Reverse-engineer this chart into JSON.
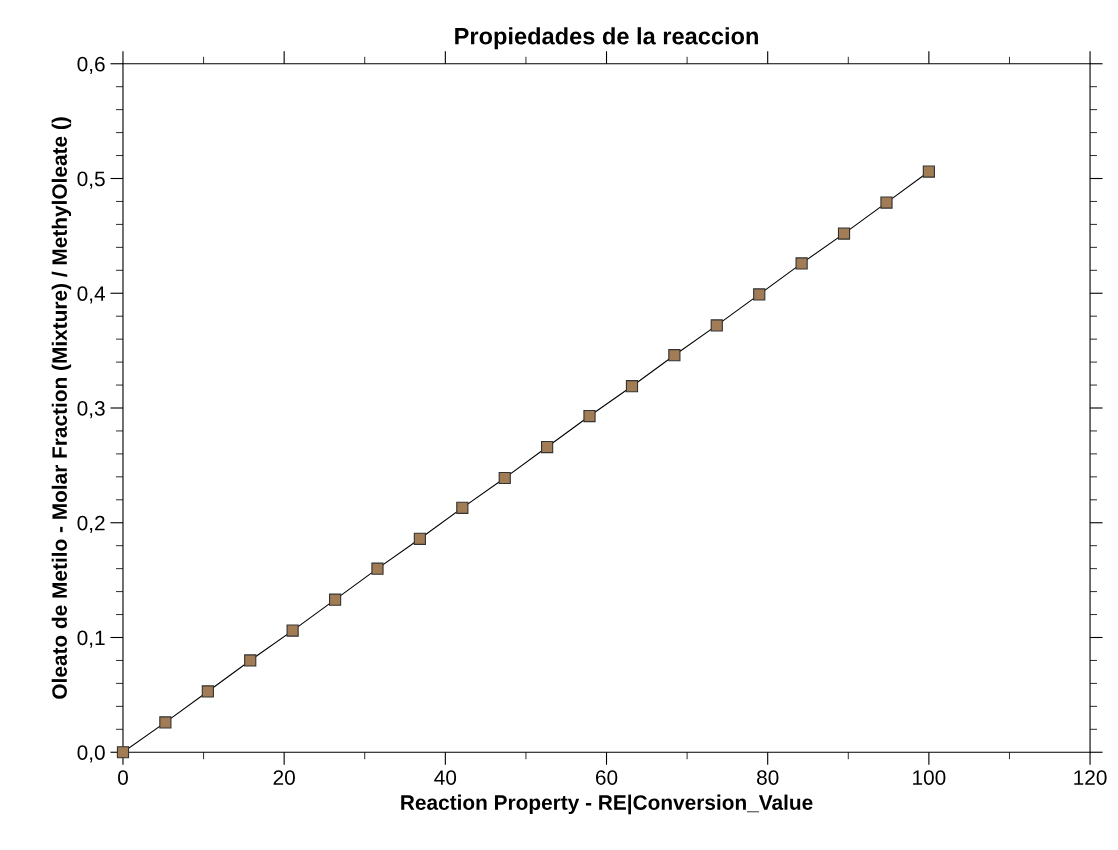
{
  "chart_data": {
    "type": "line",
    "title": "Propiedades de la reaccion",
    "xlabel": "Reaction Property - RE|Conversion_Value",
    "ylabel": "Oleato de Metilo - Molar Fraction (Mixture) / MethylOleate ()",
    "series": [
      {
        "color": "#a27c55",
        "x": [
          0,
          5.26,
          10.53,
          15.79,
          21.05,
          26.32,
          31.58,
          36.84,
          42.11,
          47.37,
          52.63,
          57.89,
          63.16,
          68.42,
          73.68,
          78.95,
          84.21,
          89.47,
          94.74,
          100
        ],
        "values": [
          0,
          0.026,
          0.053,
          0.08,
          0.106,
          0.133,
          0.16,
          0.186,
          0.213,
          0.239,
          0.266,
          0.293,
          0.319,
          0.346,
          0.372,
          0.399,
          0.426,
          0.452,
          0.479,
          0.506
        ]
      }
    ],
    "marker": "square",
    "line_style": "solid",
    "grid": false,
    "legend": false,
    "xlim": [
      0,
      120
    ],
    "xticks": [
      0,
      20,
      40,
      60,
      80,
      100,
      120
    ],
    "ylim": [
      0,
      0.6
    ],
    "yticks": [
      {
        "value": 0,
        "label": "0,0"
      },
      {
        "value": 0.1,
        "label": "0,1"
      },
      {
        "value": 0.2,
        "label": "0,2"
      },
      {
        "value": 0.3,
        "label": "0,3"
      },
      {
        "value": 0.4,
        "label": "0,4"
      },
      {
        "value": 0.5,
        "label": "0,5"
      },
      {
        "value": 0.6,
        "label": "0,6"
      }
    ]
  }
}
